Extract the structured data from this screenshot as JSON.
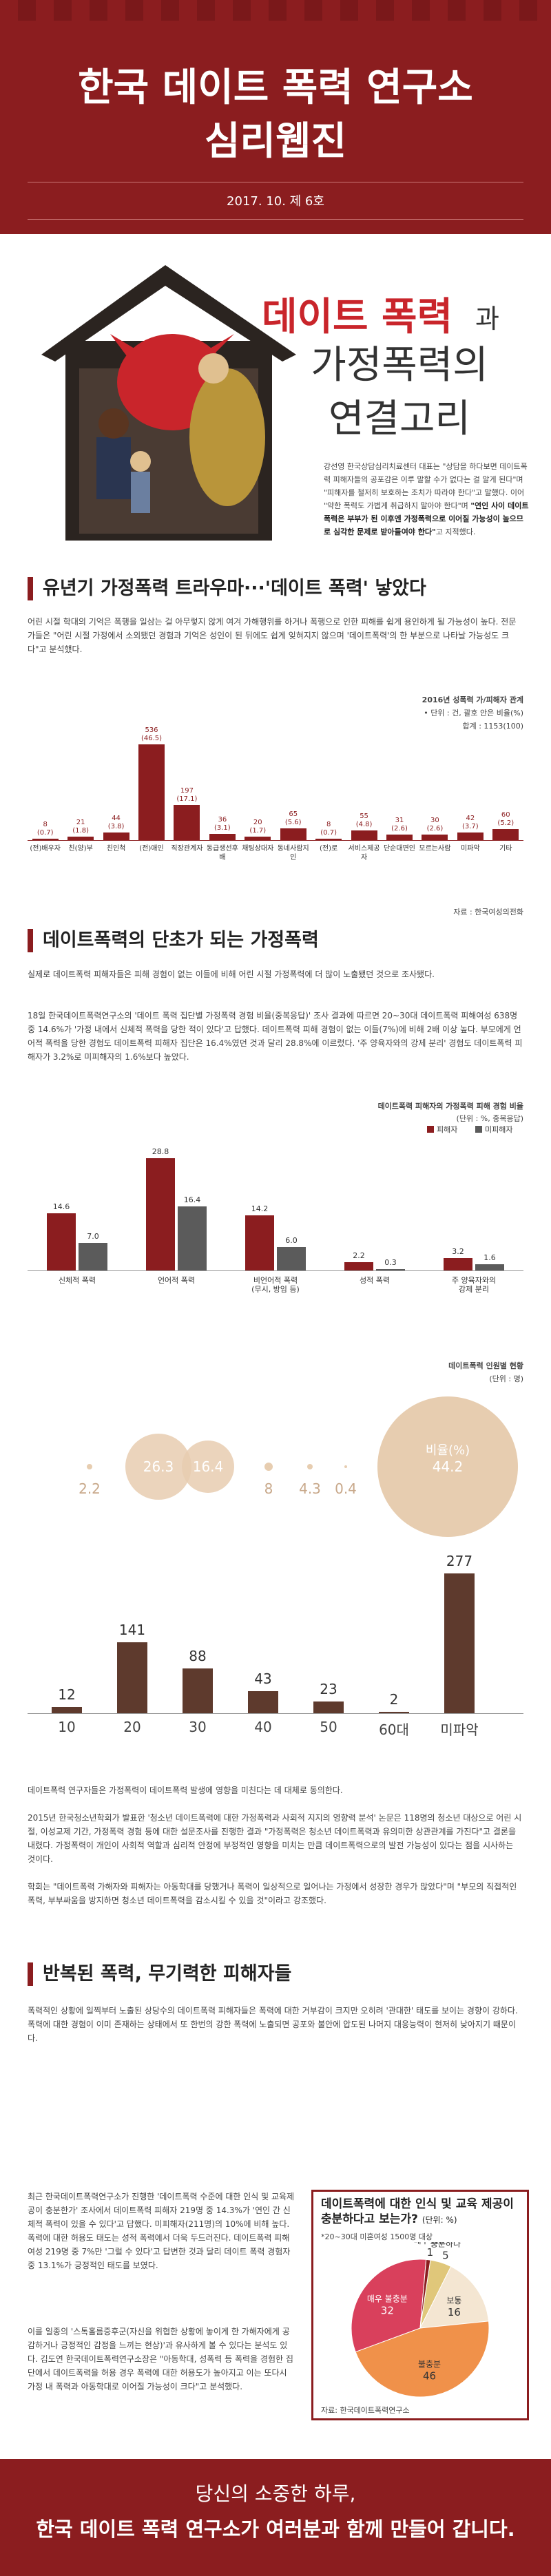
{
  "header": {
    "title_line1": "한국 데이트 폭력 연구소",
    "title_line2": "심리웹진",
    "date": "2017. 10. 제 6호"
  },
  "hero": {
    "title_red": "데이트 폭력",
    "title_suffix": "과",
    "title_line2": "가정폭력의",
    "title_line3": "연결고리",
    "paragraph_plain": "강선영 한국상담심리치료센터 대표는 \"상담을 하다보면 데이트폭력 피해자들의 공포감은 이루 말할 수가 없다는 걸 알게 된다\"며 \"피해자를 철저히 보호하는 조치가 따라야 한다\"고 말했다. 이어 \"약한 폭력도 가볍게 취급하지 말아야 한다\"며 ",
    "paragraph_bold": "\"연인 사이 데이트폭력은 부부가 된 이후엔 가정폭력으로 이어질 가능성이 높으므로 심각한 문제로 받아들여야 한다\"",
    "paragraph_end": "고 지적했다."
  },
  "section1": {
    "heading": "유년기 가정폭력 트라우마···'데이트 폭력' 낳았다",
    "body": "어린 시절 학대의 기억은 폭행을 일삼는 걸 아무렇지 않게 여겨 가해행위를 하거나 폭행으로 인한 피해를 쉽게 용인하게 될 가능성이 높다. 전문가들은 \"어린 시절 가정에서 소외됐던 경험과 기억은 성인이 된 뒤에도 쉽게 잊혀지지 않으며 '데이트폭력'의 한 부분으로 나타날 가능성도 크다\"고 분석했다."
  },
  "chart1": {
    "title": "2016년 성폭력 가/피해자 관계",
    "unit": "• 단위 : 건, 괄호 안은 비율(%)",
    "total": "합계 : 1153(100)",
    "source": "자료 : 한국여성의전화"
  },
  "section2": {
    "heading": "데이트폭력의 단초가 되는 가정폭력",
    "body1": "실제로 데이트폭력 피해자들은 피해 경험이 없는 이들에 비해 어린 시절 가정폭력에 더 많이 노출됐던 것으로 조사됐다.",
    "body2": "18일 한국데이트폭력연구소의 '데이트 폭력 집단별 가정폭력 경험 비율(중복응답)' 조사 결과에 따르면 20~30대 데이트폭력 피해여성 638명 중 14.6%가 '가정 내에서 신체적 폭력을 당한 적이 있다'고 답했다. 데이트폭력 피해 경험이 없는 이들(7%)에 비해 2배 이상 높다. 부모에게 언어적 폭력을 당한 경험도 데이트폭력 피해자 집단은 16.4%였던 것과 달리 28.8%에 이르렀다. '주 양육자와의 강제 분리' 경험도 데이트폭력 피해자가 3.2%로 미피해자의 1.6%보다 높았다."
  },
  "chart2": {
    "title": "데이트폭력 피해자의 가정폭력 피해 경험 비율",
    "unit": "(단위 : %, 중복응답)",
    "legend": [
      "피해자",
      "미피해자"
    ],
    "colors": {
      "victim": "#8b1d1f",
      "non_victim": "#5b5b5b"
    }
  },
  "chart3": {
    "title": "데이트폭력 인원별 현황",
    "unit": "(단위 : 명)",
    "bubble_label": "비율(%)"
  },
  "section2b": {
    "body3": "데이트폭력 연구자들은 가정폭력이 데이트폭력 발생에 영향을 미친다는 데 대체로 동의한다.",
    "body4": "2015년 한국청소년학회가 발표한 '청소년 데이트폭력에 대한 가정폭력과 사회적 지지의 영향력 분석' 논문은 118명의 청소년 대상으로 어린 시절, 이성교제 기간, 가정폭력 경험 등에 대한 설문조사를 진행한 결과 \"가정폭력은 청소년 데이트폭력과 유의미한 상관관계를 가진다\"고 결론을 내렸다. 가정폭력이 개인이 사회적 역할과 심리적 안정에 부정적인 영향을 미치는 만큼 데이트폭력으로의 발전 가능성이 있다는 점을 시사하는 것이다.",
    "body5": "학회는 \"데이트폭력 가해자와 피해자는 아동학대를 당했거나 폭력이 일상적으로 일어나는 가정에서 성장한 경우가 많았다\"며 \"부모의 직접적인 폭력, 부부싸움을 방지하면 청소년 데이트폭력을 감소시킬 수 있을 것\"이라고 강조했다."
  },
  "section3": {
    "heading": "반복된 폭력, 무기력한 피해자들",
    "body1": "폭력적인 상황에 일찍부터 노출된 상당수의 데이트폭력 피해자들은 폭력에 대한 거부감이 크지만 오히려 '관대한' 태도를 보이는 경향이 강하다. 폭력에 대한 경험이 이미 존재하는 상태에서 또 한번의 강한 폭력에 노출되면 공포와 불안에 압도된 나머지 대응능력이 현저히 낮아지기 때문이다.",
    "body2": "최근 한국데이트폭력연구소가 진행한 '데이트폭력 수준에 대한 인식 및 교육제공이 충분한가' 조사에서 데이트폭력 피해자 219명 중 14.3%가 '연인 간 신체적 폭력이 있을 수 있다'고 답했다. 미피해자(211명)의 10%에 비해 높다. 폭력에 대한 허용도 태도는 성적 폭력에서 더욱 두드러진다. 데이트폭력 피해여성 219명 중 7%만 '그럴 수 있다'고 답변한 것과 달리 데이트 폭력 경험자 중 13.1%가 긍정적인 태도를 보였다.",
    "body3": "이를 일종의 '스톡홀름증후군(자신을 위협한 상황에 놓이게 한 가해자에게 공감하거나 긍정적인 감정을 느끼는 현상)'과 유사하게 볼 수 있다는 분석도 있다. 김도연 한국데이트폭력연구소장은 \"아동학대, 성폭력 등 폭력을 경험한 집단에서 데이트폭력을 허용 경우 폭력에 대한 허용도가 높아지고 이는 또다시 가정 내 폭력과 아동학대로 이어질 가능성이 크다\"고 분석했다."
  },
  "chart4": {
    "title": "데이트폭력에 대한 인식 및 교육 제공이 충분하다고 보는가?",
    "unit": "(단위: %)",
    "subtitle": "*20~30대 미혼여성 1500명 대상",
    "source": "자료: 한국데이트폭력연구소"
  },
  "chart_data": [
    {
      "type": "bar",
      "title": "2016년 성폭력 가/피해자 관계",
      "categories": [
        "(전)배우자",
        "친(양)부",
        "친인척",
        "(전)애인",
        "직장관계자",
        "동급생선후배",
        "채팅상대자",
        "동네사람지인",
        "(전)로",
        "서비스제공자",
        "단순대면인",
        "모르는사람",
        "미파악",
        "기타"
      ],
      "values": [
        8,
        21,
        44,
        536,
        197,
        36,
        20,
        65,
        8,
        55,
        31,
        30,
        42,
        60
      ],
      "percents": [
        "(0.7)",
        "(1.8)",
        "(3.8)",
        "(46.5)",
        "(17.1)",
        "(3.1)",
        "(1.7)",
        "(5.6)",
        "(0.7)",
        "(4.8)",
        "(2.6)",
        "(2.6)",
        "(3.7)",
        "(5.2)"
      ],
      "ylim": [
        0,
        560
      ]
    },
    {
      "type": "bar",
      "title": "데이트폭력 피해자의 가정폭력 피해 경험 비율",
      "categories": [
        "신체적 폭력",
        "언어적 폭력",
        "비언어적 폭력\n(무시, 방임 등)",
        "성적 폭력",
        "주 양육자와의\n강제 분리"
      ],
      "series": [
        {
          "name": "피해자",
          "values": [
            14.6,
            28.8,
            14.2,
            2.2,
            3.2
          ]
        },
        {
          "name": "미피해자",
          "values": [
            7.0,
            16.4,
            6.0,
            0.3,
            1.6
          ]
        }
      ],
      "ylim": [
        0,
        30
      ]
    },
    {
      "type": "bar",
      "title": "데이트폭력 인원별 현황",
      "categories": [
        "10",
        "20",
        "30",
        "40",
        "50",
        "60대",
        "미파악"
      ],
      "values": [
        12,
        141,
        88,
        43,
        23,
        2,
        277
      ],
      "percents": [
        2.2,
        26.3,
        16.4,
        8,
        4.3,
        0.4,
        44.2
      ],
      "ylim": [
        0,
        300
      ]
    },
    {
      "type": "pie",
      "title": "데이트폭력에 대한 인식 및 교육 제공이 충분하다고 보는가?",
      "categories": [
        "충분하다",
        "보통",
        "불충분",
        "매우 불충분",
        "매우 충분"
      ],
      "values": [
        5,
        16,
        46,
        32,
        1
      ],
      "colors": [
        "#e0c77a",
        "#f4e6d2",
        "#f0914a",
        "#d9405c",
        "#8b1d1f"
      ]
    }
  ]
}
